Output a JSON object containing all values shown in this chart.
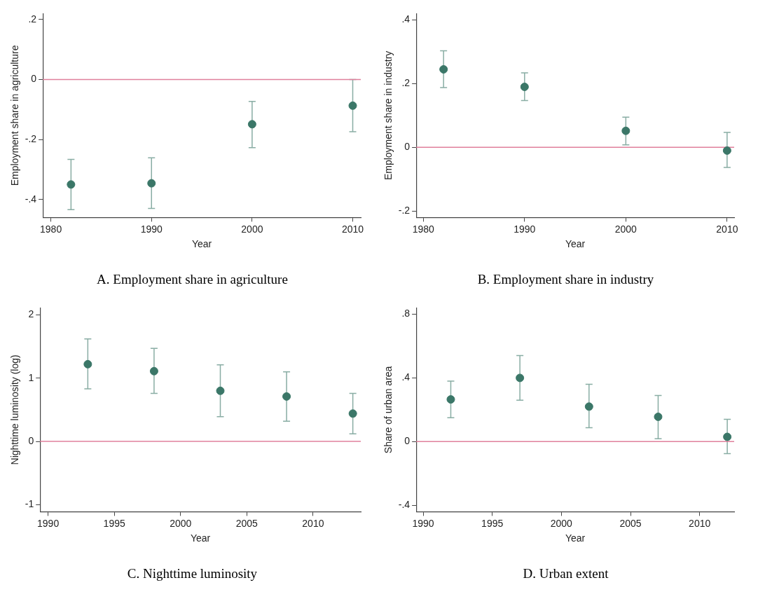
{
  "chart_data": [
    {
      "type": "scatter",
      "title": "A. Employment share in agriculture",
      "xlabel": "Year",
      "ylabel": "Employment share in agriculture",
      "marker": "circle",
      "grid": false,
      "legend": false,
      "x": [
        1982,
        1990,
        2000,
        2010
      ],
      "series": [
        {
          "color": "#3b7768",
          "values": [
            -0.35,
            -0.346,
            -0.149,
            -0.087
          ],
          "errors": [
            [
              -0.434,
              -0.266
            ],
            [
              -0.43,
              -0.261
            ],
            [
              -0.227,
              -0.073
            ],
            [
              -0.174,
              0.0
            ]
          ]
        }
      ],
      "xlim": [
        1979.2,
        2010.8
      ],
      "xticks": [
        1980,
        1990,
        2000,
        2010
      ],
      "ylim": [
        -0.46,
        0.22
      ],
      "yticks": [
        {
          "value": -0.4,
          "label": "-.4"
        },
        {
          "value": -0.2,
          "label": "-.2"
        },
        0,
        {
          "value": 0.2,
          "label": ".2"
        }
      ],
      "ref_lines": [
        {
          "axis": "y",
          "value": 0,
          "color": "#e0809c"
        }
      ]
    },
    {
      "type": "scatter",
      "title": "B. Employment share in industry",
      "xlabel": "Year",
      "ylabel": "Employment share in industry",
      "marker": "circle",
      "grid": false,
      "legend": false,
      "x": [
        1982,
        1990,
        2000,
        2010
      ],
      "series": [
        {
          "color": "#3b7768",
          "values": [
            0.245,
            0.19,
            0.052,
            -0.01
          ],
          "errors": [
            [
              0.188,
              0.303
            ],
            [
              0.147,
              0.234
            ],
            [
              0.008,
              0.095
            ],
            [
              -0.063,
              0.047
            ]
          ]
        }
      ],
      "xlim": [
        1979.3,
        2010.7
      ],
      "xticks": [
        1980,
        1990,
        2000,
        2010
      ],
      "ylim": [
        -0.22,
        0.42
      ],
      "yticks": [
        {
          "value": -0.2,
          "label": "-.2"
        },
        0,
        {
          "value": 0.2,
          "label": ".2"
        },
        {
          "value": 0.4,
          "label": ".4"
        }
      ],
      "ref_lines": [
        {
          "axis": "y",
          "value": 0,
          "color": "#e0809c"
        }
      ]
    },
    {
      "type": "scatter",
      "title": "C. Nighttime luminosity",
      "xlabel": "Year",
      "ylabel": "Nighttime luminosity (log)",
      "marker": "circle",
      "grid": false,
      "legend": false,
      "x": [
        1993,
        1998,
        2003,
        2008,
        2013
      ],
      "series": [
        {
          "color": "#3b7768",
          "values": [
            1.22,
            1.11,
            0.8,
            0.71,
            0.44
          ],
          "errors": [
            [
              0.83,
              1.62
            ],
            [
              0.76,
              1.47
            ],
            [
              0.39,
              1.21
            ],
            [
              0.32,
              1.1
            ],
            [
              0.12,
              0.76
            ]
          ]
        }
      ],
      "xlim": [
        1989.4,
        2013.6
      ],
      "xticks": [
        1990,
        1995,
        2000,
        2005,
        2010
      ],
      "ylim": [
        -1.11,
        2.11
      ],
      "yticks": [
        -1,
        0,
        1,
        2
      ],
      "ref_lines": [
        {
          "axis": "y",
          "value": 0,
          "color": "#e0809c"
        }
      ]
    },
    {
      "type": "scatter",
      "title": "D. Urban extent",
      "xlabel": "Year",
      "ylabel": "Share of urban area",
      "marker": "circle",
      "grid": false,
      "legend": false,
      "x": [
        1992,
        1997,
        2002,
        2007,
        2012
      ],
      "series": [
        {
          "color": "#3b7768",
          "values": [
            0.265,
            0.4,
            0.22,
            0.156,
            0.03
          ],
          "errors": [
            [
              0.15,
              0.38
            ],
            [
              0.26,
              0.54
            ],
            [
              0.087,
              0.36
            ],
            [
              0.018,
              0.29
            ],
            [
              -0.075,
              0.14
            ]
          ]
        }
      ],
      "xlim": [
        1989.5,
        2012.5
      ],
      "xticks": [
        1990,
        1995,
        2000,
        2005,
        2010
      ],
      "ylim": [
        -0.44,
        0.84
      ],
      "yticks": [
        {
          "value": -0.4,
          "label": "-.4"
        },
        0,
        {
          "value": 0.4,
          "label": ".4"
        },
        {
          "value": 0.8,
          "label": ".8"
        }
      ],
      "ref_lines": [
        {
          "axis": "y",
          "value": 0,
          "color": "#e0809c"
        }
      ]
    }
  ]
}
